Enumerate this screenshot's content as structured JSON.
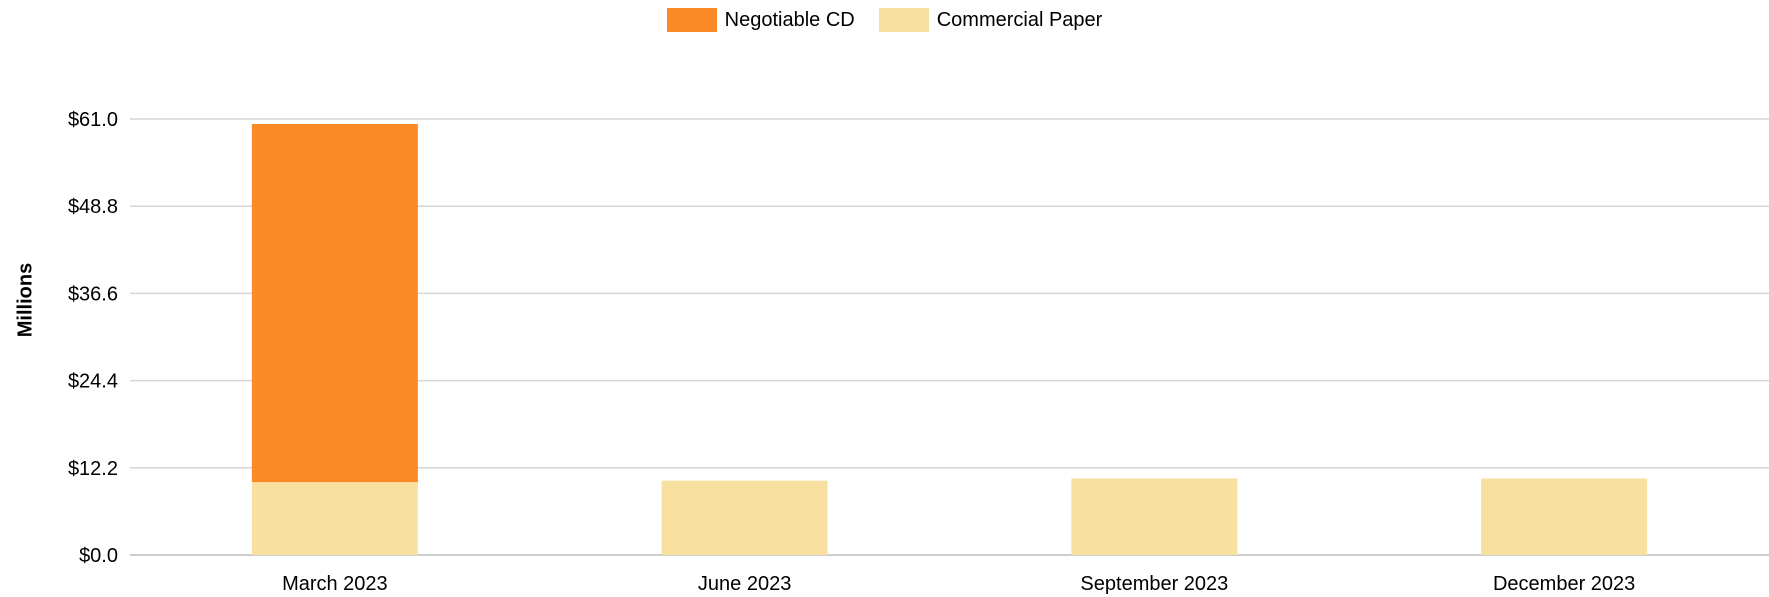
{
  "chart_data": {
    "type": "bar",
    "stacked": true,
    "categories": [
      "March 2023",
      "June 2023",
      "September 2023",
      "December 2023"
    ],
    "series": [
      {
        "name": "Commercial Paper",
        "color": "#f8e0a0",
        "values": [
          10.2,
          10.4,
          10.7,
          10.7
        ]
      },
      {
        "name": "Negotiable CD",
        "color": "#f98a25",
        "values": [
          50.1,
          0,
          0,
          0
        ]
      }
    ],
    "legend_order": [
      "Negotiable CD",
      "Commercial Paper"
    ],
    "legend_position": "top-center",
    "ylabel": "Millions",
    "ylim": [
      0,
      61.0
    ],
    "yticks": [
      "$0.0",
      "$12.2",
      "$24.4",
      "$36.6",
      "$48.8",
      "$61.0"
    ],
    "ytick_values": [
      0,
      12.2,
      24.4,
      36.6,
      48.8,
      61.0
    ],
    "grid": true
  }
}
